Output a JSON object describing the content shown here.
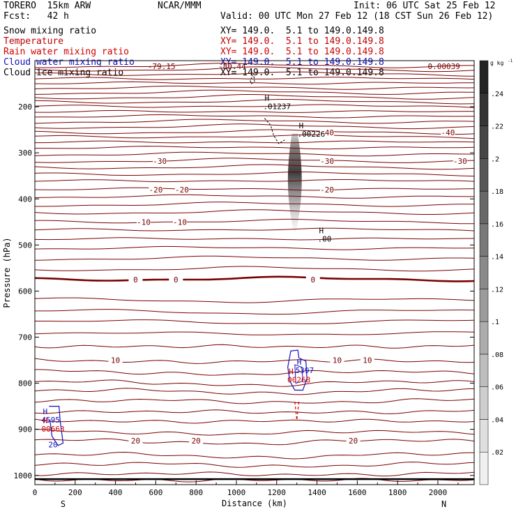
{
  "header": {
    "model": "TORERO  15km ARW",
    "forecast": "Fcst:   42 h",
    "center": "NCAR/MMM",
    "init": "Init: 06 UTC Sat 25 Feb 12",
    "valid": "Valid: 00 UTC Mon 27 Feb 12 (18 CST Sun 26 Feb 12)",
    "fields": [
      {
        "name": "Snow mixing ratio",
        "xy": "XY= 149.0.  5.1 to 149.0.149.8",
        "color": "#000000"
      },
      {
        "name": "Temperature",
        "xy": "XY= 149.0.  5.1 to 149.0.149.8",
        "color": "#c00000"
      },
      {
        "name": "Rain water mixing ratio",
        "xy": "XY= 149.0.  5.1 to 149.0.149.8",
        "color": "#d00000"
      },
      {
        "name": "Cloud water mixing ratio",
        "xy": "XY= 149.0.  5.1 to 149.0.149.8",
        "color": "#1010c0"
      },
      {
        "name": "Cloud ice mixing ratio",
        "xy": "XY= 149.0.  5.1 to 149.0.149.8",
        "color": "#000000"
      }
    ]
  },
  "chart_data": {
    "type": "contour cross-section",
    "xlabel": "Distance (km)",
    "ylabel": "Pressure (hPa)",
    "xlim": [
      0,
      2180
    ],
    "ylim": [
      1020,
      100
    ],
    "x_ticks": [
      0,
      200,
      400,
      600,
      800,
      1000,
      1200,
      1400,
      1600,
      1800,
      2000
    ],
    "y_ticks": [
      200,
      300,
      400,
      500,
      600,
      700,
      800,
      900,
      1000
    ],
    "end_labels": {
      "left": "S",
      "right": "N"
    },
    "colorbar": {
      "unit_label": "g kg",
      "unit_exp": "-1",
      "ticks": [
        ".02",
        ".04",
        ".06",
        ".08",
        ".1",
        ".12",
        ".14",
        ".16",
        ".18",
        ".2",
        ".22",
        ".24"
      ],
      "tick_values": [
        0.02,
        0.04,
        0.06,
        0.08,
        0.1,
        0.12,
        0.14,
        0.16,
        0.18,
        0.2,
        0.22,
        0.24
      ],
      "range": [
        0,
        0.26
      ]
    },
    "temperature_contours": [
      {
        "p": 1008
      },
      {
        "p": 995
      },
      {
        "p": 975
      },
      {
        "p": 955
      },
      {
        "p": 925,
        "label": "20",
        "label_x": [
          500,
          800,
          1580
        ]
      },
      {
        "p": 905
      },
      {
        "p": 880
      },
      {
        "p": 860
      },
      {
        "p": 837
      },
      {
        "p": 816
      },
      {
        "p": 798
      },
      {
        "p": 775
      },
      {
        "p": 750,
        "label": "10",
        "label_x": [
          400,
          1500,
          1650
        ]
      },
      {
        "p": 718
      },
      {
        "p": 690
      },
      {
        "p": 665
      },
      {
        "p": 643
      },
      {
        "p": 618
      },
      {
        "p": 575,
        "label": "0",
        "label_x": [
          500,
          700,
          1380
        ],
        "bold": true
      },
      {
        "p": 553
      },
      {
        "p": 530
      },
      {
        "p": 508
      },
      {
        "p": 488
      },
      {
        "p": 468
      },
      {
        "p": 450,
        "label": "-10",
        "label_x": [
          540,
          720
        ]
      },
      {
        "p": 430
      },
      {
        "p": 413
      },
      {
        "p": 396
      },
      {
        "p": 380,
        "label": "-20",
        "label_x": [
          600,
          730,
          1450
        ]
      },
      {
        "p": 362
      },
      {
        "p": 347
      },
      {
        "p": 332
      },
      {
        "p": 318,
        "label": "-30",
        "label_x": [
          620,
          1450,
          2110
        ]
      },
      {
        "p": 304
      },
      {
        "p": 290
      },
      {
        "p": 278
      },
      {
        "p": 266
      },
      {
        "p": 256,
        "label": "-40",
        "label_x": [
          1450,
          2050
        ]
      },
      {
        "p": 244
      },
      {
        "p": 233
      },
      {
        "p": 222
      },
      {
        "p": 212
      },
      {
        "p": 200
      },
      {
        "p": 190
      },
      {
        "p": 180
      },
      {
        "p": 170
      },
      {
        "p": 160
      },
      {
        "p": 150
      },
      {
        "p": 140
      },
      {
        "p": 130
      },
      {
        "p": 120
      },
      {
        "p": 112
      }
    ],
    "top_values": [
      {
        "text": "-79.15",
        "x": 560
      },
      {
        "text": "-80.44",
        "x": 910
      },
      {
        "text": "0.00039",
        "x": 1950
      }
    ],
    "snow_shading": {
      "x_center": 1290,
      "p_top": 258,
      "p_bottom": 470,
      "max_value": 0.24
    },
    "maxima": [
      {
        "mark": "H",
        "value": ".01237",
        "x": 1140,
        "p": 205,
        "color": "#000000"
      },
      {
        "mark": "H",
        "value": ".00226",
        "x": 1310,
        "p": 265,
        "color": "#000000"
      },
      {
        "mark": "H",
        "value": ".00",
        "x": 1410,
        "p": 493,
        "color": "#000000"
      },
      {
        "mark": "H",
        "value": "5397",
        "x": 1300,
        "p": 778,
        "color": "#1010c0"
      },
      {
        "mark": "H",
        "value": "00268",
        "x": 1260,
        "p": 798,
        "color": "#d00000"
      },
      {
        "mark": "H",
        "value": "4595",
        "x": 40,
        "p": 885,
        "color": "#1010c0"
      },
      {
        "mark": "H",
        "value": "00663",
        "x": 40,
        "p": 905,
        "color": "#d00000"
      }
    ],
    "cloud_water_contour_labels": [
      {
        "text": "20",
        "x": 90,
        "p": 933,
        "color": "#1010c0"
      }
    ]
  }
}
